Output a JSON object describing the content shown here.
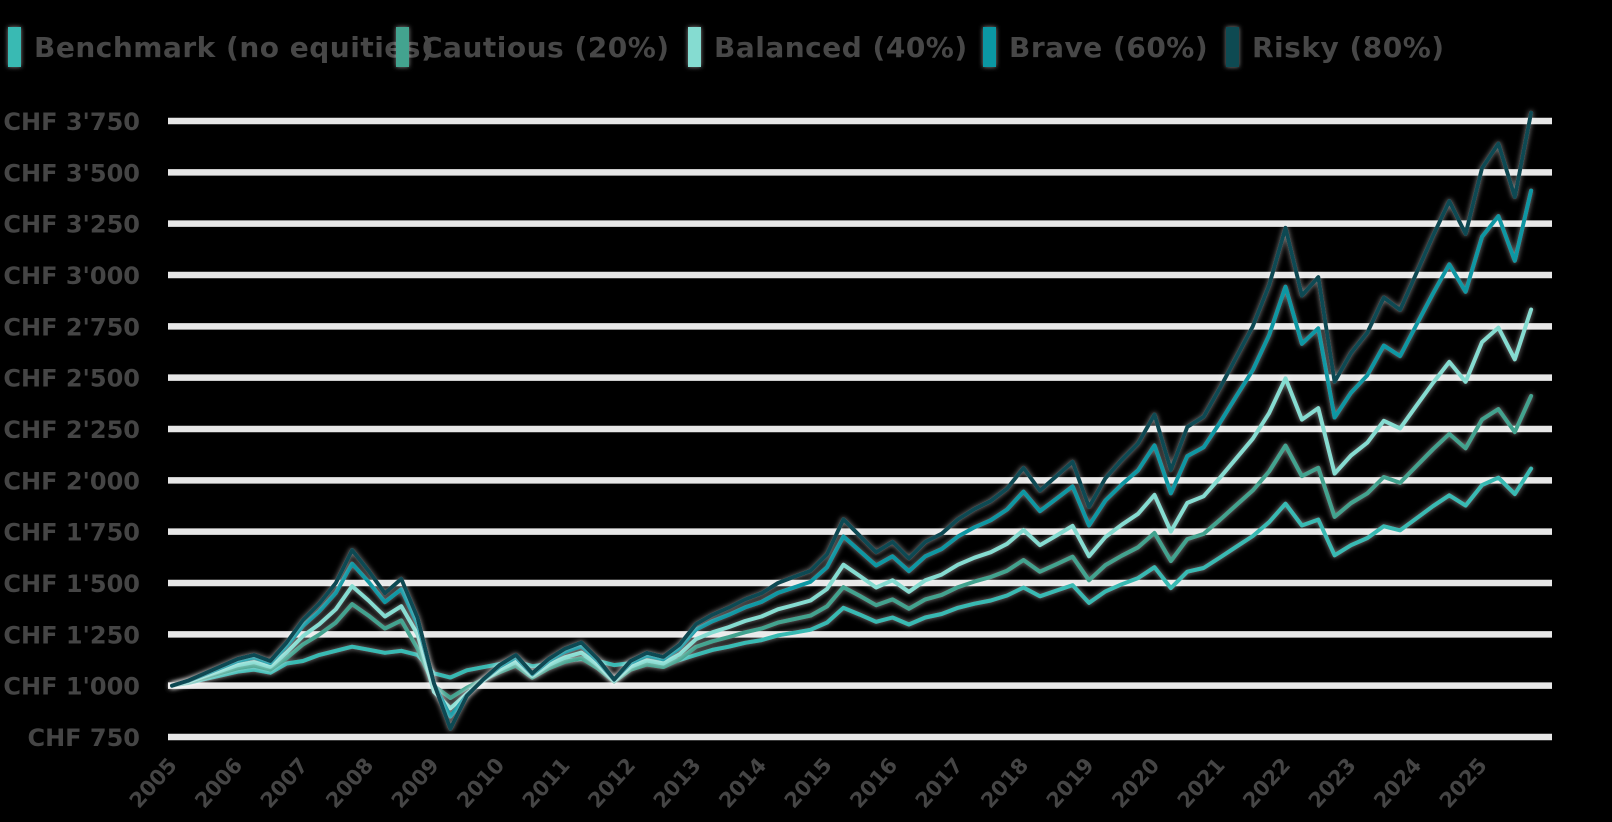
{
  "chart_data": {
    "type": "line",
    "title": "",
    "currency": "CHF",
    "legend_position": "top",
    "grid": "horizontal",
    "background_color": "#000000",
    "grid_color": "#e7e7e7",
    "text_color": "#454545",
    "ylim": [
      750,
      3750
    ],
    "y_step": 250,
    "y_tick_labels": [
      "CHF 3'750",
      "CHF 3'500",
      "CHF 3'250",
      "CHF 3'000",
      "CHF 2'750",
      "CHF 2'500",
      "CHF 2'250",
      "CHF 2'000",
      "CHF 1'750",
      "CHF 1'500",
      "CHF 1'250",
      "CHF 1'000",
      "CHF 750"
    ],
    "x_tick_labels": [
      "2005",
      "2006",
      "2007",
      "2008",
      "2009",
      "2010",
      "2011",
      "2012",
      "2013",
      "2014",
      "2015",
      "2016",
      "2017",
      "2018",
      "2019",
      "2020",
      "2021",
      "2022",
      "2023",
      "2024",
      "2025"
    ],
    "x_start": 2005,
    "x_step_years": 0.25,
    "series": [
      {
        "name": "Benchmark (no equities)",
        "color": "#39bab3",
        "values": [
          1000,
          1013,
          1032,
          1050,
          1068,
          1078,
          1063,
          1108,
          1120,
          1150,
          1170,
          1190,
          1175,
          1160,
          1170,
          1150,
          1060,
          1040,
          1075,
          1090,
          1105,
          1118,
          1095,
          1105,
          1122,
          1130,
          1120,
          1100,
          1110,
          1115,
          1112,
          1125,
          1150,
          1174,
          1190,
          1209,
          1222,
          1245,
          1258,
          1272,
          1307,
          1379,
          1346,
          1311,
          1332,
          1298,
          1332,
          1349,
          1379,
          1399,
          1415,
          1439,
          1478,
          1435,
          1463,
          1490,
          1403,
          1459,
          1494,
          1524,
          1577,
          1475,
          1555,
          1573,
          1624,
          1677,
          1729,
          1796,
          1886,
          1780,
          1809,
          1635,
          1684,
          1719,
          1776,
          1756,
          1815,
          1874,
          1927,
          1877,
          1977,
          2013,
          1933,
          2057
        ]
      },
      {
        "name": "Cautious (20%)",
        "color": "#43a38f",
        "values": [
          1000,
          1016,
          1039,
          1062,
          1084,
          1097,
          1078,
          1134,
          1201,
          1249,
          1307,
          1397,
          1341,
          1278,
          1318,
          1180,
          1000,
          940,
          990,
          1030,
          1065,
          1097,
          1039,
          1084,
          1116,
          1134,
          1084,
          1020,
          1078,
          1103,
          1091,
          1128,
          1189,
          1216,
          1237,
          1260,
          1278,
          1307,
          1324,
          1341,
          1386,
          1480,
          1437,
          1392,
          1420,
          1375,
          1420,
          1442,
          1480,
          1507,
          1529,
          1560,
          1612,
          1555,
          1591,
          1628,
          1513,
          1587,
          1633,
          1674,
          1744,
          1607,
          1714,
          1739,
          1808,
          1880,
          1951,
          2043,
          2169,
          2020,
          2061,
          1822,
          1889,
          1937,
          2016,
          1988,
          2070,
          2151,
          2226,
          2156,
          2296,
          2347,
          2235,
          2411
        ]
      },
      {
        "name": "Balanced (40%)",
        "color": "#85dcd1",
        "values": [
          1000,
          1019,
          1047,
          1073,
          1100,
          1115,
          1092,
          1161,
          1242,
          1300,
          1372,
          1485,
          1415,
          1337,
          1387,
          1249,
          970,
          890,
          961,
          1023,
          1077,
          1115,
          1047,
          1100,
          1138,
          1161,
          1100,
          1023,
          1092,
          1123,
          1108,
          1153,
          1227,
          1260,
          1285,
          1315,
          1337,
          1372,
          1393,
          1415,
          1471,
          1589,
          1534,
          1478,
          1513,
          1457,
          1513,
          1541,
          1589,
          1623,
          1650,
          1691,
          1758,
          1684,
          1731,
          1778,
          1630,
          1724,
          1784,
          1837,
          1929,
          1751,
          1890,
          1922,
          2013,
          2108,
          2203,
          2327,
          2497,
          2296,
          2352,
          2033,
          2121,
          2184,
          2290,
          2253,
          2364,
          2474,
          2577,
          2480,
          2673,
          2744,
          2589,
          2832
        ]
      },
      {
        "name": "Brave (60%)",
        "color": "#0b97a3",
        "values": [
          1000,
          1023,
          1055,
          1087,
          1119,
          1137,
          1110,
          1192,
          1291,
          1363,
          1452,
          1594,
          1506,
          1407,
          1470,
          1300,
          1009,
          850,
          954,
          1028,
          1092,
          1137,
          1055,
          1119,
          1165,
          1192,
          1119,
          1028,
          1110,
          1146,
          1128,
          1183,
          1273,
          1314,
          1345,
          1381,
          1408,
          1452,
          1479,
          1506,
          1577,
          1727,
          1656,
          1585,
          1630,
          1558,
          1630,
          1665,
          1727,
          1771,
          1806,
          1858,
          1945,
          1850,
          1910,
          1971,
          1780,
          1902,
          1980,
          2049,
          2170,
          1937,
          2118,
          2161,
          2281,
          2410,
          2537,
          2707,
          2943,
          2665,
          2741,
          2306,
          2427,
          2512,
          2656,
          2605,
          2758,
          2909,
          3052,
          2918,
          3186,
          3287,
          3069,
          3411
        ]
      },
      {
        "name": "Risky (80%)",
        "color": "#0e4a52",
        "values": [
          1000,
          1025,
          1060,
          1095,
          1130,
          1150,
          1120,
          1210,
          1320,
          1400,
          1500,
          1660,
          1560,
          1450,
          1520,
          1330,
          1010,
          790,
          950,
          1030,
          1100,
          1150,
          1060,
          1130,
          1180,
          1210,
          1130,
          1030,
          1120,
          1160,
          1140,
          1200,
          1300,
          1345,
          1380,
          1420,
          1450,
          1500,
          1530,
          1560,
          1640,
          1810,
          1730,
          1650,
          1700,
          1620,
          1700,
          1740,
          1810,
          1860,
          1900,
          1960,
          2060,
          1950,
          2020,
          2090,
          1870,
          2010,
          2100,
          2180,
          2320,
          2050,
          2260,
          2310,
          2450,
          2600,
          2750,
          2950,
          3230,
          2900,
          2990,
          2480,
          2620,
          2720,
          2890,
          2830,
          3010,
          3190,
          3360,
          3200,
          3520,
          3640,
          3380,
          3790
        ]
      }
    ]
  },
  "legend": {
    "items": [
      {
        "label": "Benchmark (no equities)",
        "color": "#39bab3"
      },
      {
        "label": "Cautious (20%)",
        "color": "#43a38f"
      },
      {
        "label": "Balanced (40%)",
        "color": "#85dcd1"
      },
      {
        "label": "Brave (60%)",
        "color": "#0b97a3"
      },
      {
        "label": "Risky (80%)",
        "color": "#0e4a52"
      }
    ]
  }
}
